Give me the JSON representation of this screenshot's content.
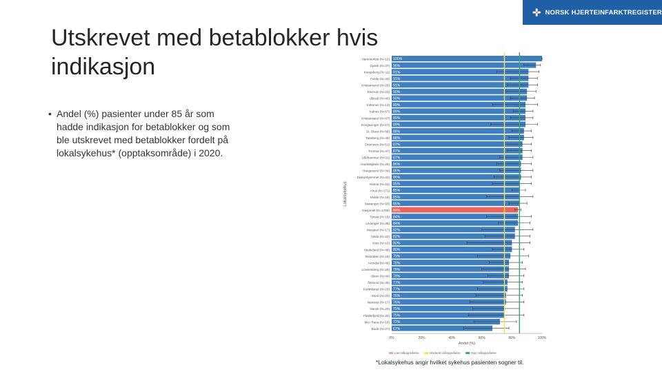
{
  "brand": {
    "logo_text": "NORSK HJERTEINFARKTREGISTER",
    "color": "#1f5fa5"
  },
  "slide": {
    "title": "Utskrevet med betablokker hvis indikasjon",
    "bullet": "Andel (%) pasienter under 85 år som hadde indikasjon for betablokker og som ble utskrevet med betablokker fordelt på lokalsykehus* (opptaksområde) i 2020.",
    "footnote": "*Lokalsykehus angir hvilket sykehus pasienten sogner til."
  },
  "chart_data": {
    "type": "bar",
    "orientation": "horizontal",
    "ylabel": "Lokalsykehus",
    "xlabel": "Andel (%)",
    "x_ticks": [
      "0%",
      "20%",
      "40%",
      "60%",
      "80%",
      "100%"
    ],
    "xlim": [
      0,
      100
    ],
    "categories": [
      "Hammerfest (N=15)",
      "Gjøvik (N=37)",
      "Kongsberg (N=11)",
      "Førde (N=34)",
      "Kristiansund (N=26)",
      "Elverum (N=23)",
      "Ullevål (N=40)",
      "Kirkenes (N=14)",
      "Kalnes (N=67)",
      "Kristiansand (N=47)",
      "Kongsvinger (N=17)",
      "St. Olavs (N=68)",
      "Tønsberg (N=48)",
      "Drammen (N=51)",
      "Tromsø (N=47)",
      "Lillehammer (N=31)",
      "Haraldsplass (N=29)",
      "Haugesund (N=34)",
      "Diakonhjemmet (N=22)",
      "Hamar (N=24)",
      "Ahus (N=171)",
      "Molde (N=18)",
      "Stavanger (N=93)",
      "Nasjonalt (N=1756)",
      "Tynset (N=18)",
      "Levanger (N=35)",
      "Mosjøen (N=17)",
      "Volda (N=22)",
      "Voss (N=10)",
      "Haukeland (N=48)",
      "Notodden (N=18)",
      "Arendal (N=46)",
      "Lovisenberg (N=28)",
      "Skien (N=44)",
      "Ålesund (N=35)",
      "Fredrikstad (N=20)",
      "Stord (N=22)",
      "Namsos (N=17)",
      "Narvik (N=20)",
      "Flekkefjord (N=20)",
      "Mo i Rana (N=18)",
      "Bodø (N=27)"
    ],
    "values": [
      100,
      96,
      91,
      91,
      91,
      90,
      90,
      89,
      89,
      89,
      89,
      88,
      88,
      87,
      87,
      87,
      86,
      86,
      86,
      85,
      85,
      85,
      85,
      84,
      84,
      84,
      82,
      82,
      80,
      80,
      79,
      78,
      78,
      78,
      77,
      77,
      76,
      76,
      75,
      75,
      72,
      67
    ],
    "value_labels": [
      "100%",
      "96%",
      "91%",
      "91%",
      "91%",
      "90%",
      "90%",
      "89%",
      "89%",
      "89%",
      "89%",
      "88%",
      "88%",
      "87%",
      "87%",
      "87%",
      "86%",
      "86%",
      "86%",
      "85%",
      "85%",
      "85%",
      "85%",
      "84%",
      "84%",
      "84%",
      "82%",
      "82%",
      "80%",
      "80%",
      "79%",
      "78%",
      "78%",
      "78%",
      "77%",
      "77%",
      "76%",
      "76%",
      "75%",
      "75%",
      "72%",
      "67%"
    ],
    "ci_low": [
      100,
      88,
      70,
      79,
      77,
      76,
      79,
      67,
      81,
      79,
      66,
      80,
      78,
      75,
      77,
      72,
      70,
      72,
      68,
      67,
      80,
      63,
      78,
      82,
      63,
      71,
      60,
      62,
      50,
      67,
      57,
      65,
      60,
      64,
      61,
      57,
      56,
      52,
      54,
      51,
      55,
      48
    ],
    "ci_high": [
      100,
      99,
      98,
      97,
      97,
      96,
      95,
      97,
      94,
      94,
      97,
      93,
      94,
      93,
      93,
      94,
      93,
      94,
      93,
      93,
      89,
      94,
      90,
      86,
      93,
      92,
      94,
      92,
      92,
      88,
      91,
      87,
      89,
      88,
      87,
      88,
      87,
      88,
      85,
      88,
      83,
      78
    ],
    "highlight_category": "Nasjonalt (N=1756)",
    "reference_lines": [
      {
        "value": 75,
        "label": "Moderat måloppnåelse",
        "color": "#f2e64d"
      },
      {
        "value": 85,
        "label": "Høy måloppnåelse",
        "color": "#3aa76d"
      }
    ],
    "legend": [
      "Lav måloppnåelse",
      "Moderat måloppnåelse",
      "Høy måloppnåelse"
    ],
    "legend_colors": [
      "#e8a6a6",
      "#f2e64d",
      "#3aa76d"
    ],
    "legend_placement": "bottom",
    "bar_color": "#3f7fbf",
    "highlight_color": "#e8645e",
    "grid": false
  }
}
